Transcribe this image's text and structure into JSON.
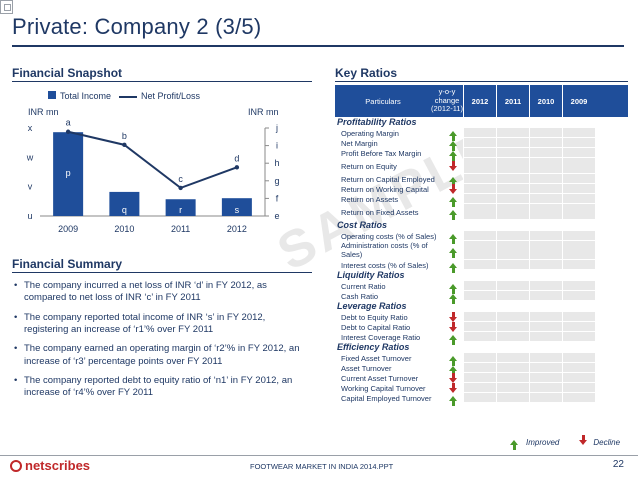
{
  "title": "Private: Company 2 (3/5)",
  "sections": {
    "snapshot": "Financial Snapshot",
    "key_ratios": "Key Ratios",
    "summary": "Financial Summary"
  },
  "chart_data": {
    "type": "bar",
    "categories": [
      "2009",
      "2010",
      "2011",
      "2012"
    ],
    "series": [
      {
        "name": "Total Income",
        "values": [
          4.0,
          1.15,
          0.8,
          0.85
        ],
        "labels": [
          "p",
          "q",
          "r",
          "s"
        ],
        "color": "#1f4e9a"
      },
      {
        "name": "Net Profit/Loss",
        "values": [
          4.5,
          3.8,
          1.5,
          2.6
        ],
        "labels": [
          "a",
          "b",
          "c",
          "d"
        ],
        "color": "#1f3864"
      }
    ],
    "ylabel_left": "INR mn",
    "ylabel_right": "INR mn",
    "left_ticks": [
      "u",
      "v",
      "w",
      "x"
    ],
    "right_ticks": [
      "e",
      "f",
      "g",
      "h",
      "i",
      "j"
    ],
    "legend_position": "top"
  },
  "summary": [
    "The company incurred a net loss of INR ‘d’ in FY 2012, as compared to net loss of INR ‘c’ in FY 2011",
    "The company reported total income of INR ‘s’ in FY 2012, registering an increase of ‘r1’% over FY 2011",
    "The company earned an operating margin of ‘r2’% in FY 2012, an increase of ‘r3’ percentage points over FY 2011",
    "The company reported debt to equity ratio of ‘n1’ in FY 2012, an increase of ‘r4’% over FY 2011"
  ],
  "ratios_table": {
    "headers": {
      "particulars": "Particulars",
      "yoy": "y-o-y change (2012-11)",
      "years": [
        "2012",
        "2011",
        "2010",
        "2009"
      ]
    },
    "groups": [
      {
        "name": "Profitability Ratios",
        "rows": [
          {
            "label": "Operating Margin",
            "trend": "up",
            "h": "s"
          },
          {
            "label": "Net Margin",
            "trend": "up",
            "h": "s"
          },
          {
            "label": "Profit Before Tax Margin",
            "trend": "up",
            "h": "s"
          },
          {
            "label": "Return on Equity",
            "trend": "down",
            "h": "t"
          },
          {
            "label": "Return on Capital Employed",
            "trend": "up",
            "h": "s"
          },
          {
            "label": "Return on Working Capital",
            "trend": "down",
            "h": "s"
          },
          {
            "label": "Return on Assets",
            "trend": "up",
            "h": "s"
          },
          {
            "label": "Return on Fixed Assets",
            "trend": "up",
            "h": "t"
          }
        ]
      },
      {
        "name": "Cost Ratios",
        "rows": [
          {
            "label": "Operating costs (% of Sales)",
            "trend": "up",
            "h": "s"
          },
          {
            "label": "Administration costs (% of Sales)",
            "trend": "up",
            "h": "x"
          },
          {
            "label": "Interest costs (% of Sales)",
            "trend": "up",
            "h": "s"
          }
        ]
      },
      {
        "name": "Liquidity Ratios",
        "rows": [
          {
            "label": "Current Ratio",
            "trend": "up",
            "h": "s"
          },
          {
            "label": "Cash Ratio",
            "trend": "up",
            "h": "s"
          }
        ]
      },
      {
        "name": "Leverage Ratios",
        "rows": [
          {
            "label": "Debt to Equity Ratio",
            "trend": "down",
            "h": "s"
          },
          {
            "label": "Debt to Capital Ratio",
            "trend": "down",
            "h": "s"
          },
          {
            "label": "Interest Coverage Ratio",
            "trend": "up",
            "h": "s"
          }
        ]
      },
      {
        "name": "Efficiency Ratios",
        "rows": [
          {
            "label": "Fixed Asset Turnover",
            "trend": "up",
            "h": "s"
          },
          {
            "label": "Asset Turnover",
            "trend": "up",
            "h": "s"
          },
          {
            "label": "Current Asset Turnover",
            "trend": "down",
            "h": "s"
          },
          {
            "label": "Working Capital Turnover",
            "trend": "down",
            "h": "s"
          },
          {
            "label": "Capital Employed Turnover",
            "trend": "up",
            "h": "s"
          }
        ]
      }
    ]
  },
  "key_legend": {
    "improved": "Improved",
    "decline": "Decline"
  },
  "footer": {
    "logo": "netscribes",
    "logo_sub": "",
    "text": "FOOTWEAR MARKET IN INDIA 2014.PPT",
    "page": "22"
  },
  "watermark": "SAMPLE"
}
